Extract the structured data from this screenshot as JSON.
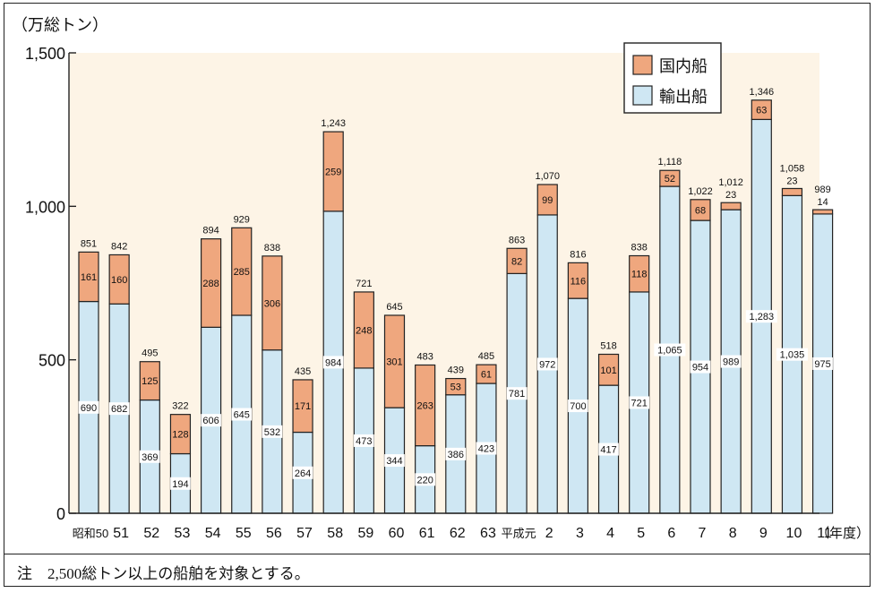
{
  "chart_data": {
    "type": "bar",
    "stacked": true,
    "unit_label": "（万総トン）",
    "x_unit_label": "（年度）",
    "ylim": [
      0,
      1500
    ],
    "yticks": [
      0,
      500,
      1000,
      1500
    ],
    "ytick_labels": [
      "0",
      "500",
      "1,000",
      "1,500"
    ],
    "categories": [
      "昭和50",
      "51",
      "52",
      "53",
      "54",
      "55",
      "56",
      "57",
      "58",
      "59",
      "60",
      "61",
      "62",
      "63",
      "平成元",
      "2",
      "3",
      "4",
      "5",
      "6",
      "7",
      "8",
      "9",
      "10",
      "11"
    ],
    "series": [
      {
        "name": "輸出船",
        "color": "#cfe7f3",
        "values": [
          690,
          682,
          369,
          194,
          606,
          645,
          532,
          264,
          984,
          473,
          344,
          220,
          386,
          423,
          781,
          972,
          700,
          417,
          721,
          1065,
          954,
          989,
          1283,
          1035,
          975
        ],
        "labels": [
          "690",
          "682",
          "369",
          "194",
          "606",
          "645",
          "532",
          "264",
          "984",
          "473",
          "344",
          "220",
          "386",
          "423",
          "781",
          "972",
          "700",
          "417",
          "721",
          "1,065",
          "954",
          "989",
          "1,283",
          "1,035",
          "975"
        ]
      },
      {
        "name": "国内船",
        "color": "#efa77e",
        "values": [
          161,
          160,
          125,
          128,
          288,
          285,
          306,
          171,
          259,
          248,
          301,
          263,
          53,
          61,
          82,
          99,
          116,
          101,
          118,
          52,
          68,
          23,
          63,
          23,
          14
        ],
        "labels": [
          "161",
          "160",
          "125",
          "128",
          "288",
          "285",
          "306",
          "171",
          "259",
          "248",
          "301",
          "263",
          "53",
          "61",
          "82",
          "99",
          "116",
          "101",
          "118",
          "52",
          "68",
          "23",
          "63",
          "23",
          "14"
        ]
      }
    ],
    "totals": [
      851,
      842,
      495,
      322,
      894,
      929,
      838,
      435,
      1243,
      721,
      645,
      483,
      439,
      485,
      863,
      1070,
      816,
      518,
      838,
      1118,
      1022,
      1012,
      1346,
      1058,
      989
    ],
    "total_labels": [
      "851",
      "842",
      "495",
      "322",
      "894",
      "929",
      "838",
      "435",
      "1,243",
      "721",
      "645",
      "483",
      "439",
      "485",
      "863",
      "1,070",
      "816",
      "518",
      "838",
      "1,118",
      "1,022",
      "1,012",
      "1,346",
      "1,058",
      "989"
    ],
    "legend": {
      "position": "top-right",
      "entries": [
        "国内船",
        "輸出船"
      ]
    }
  },
  "note": "注　2,500総トン以上の船舶を対象とする。"
}
